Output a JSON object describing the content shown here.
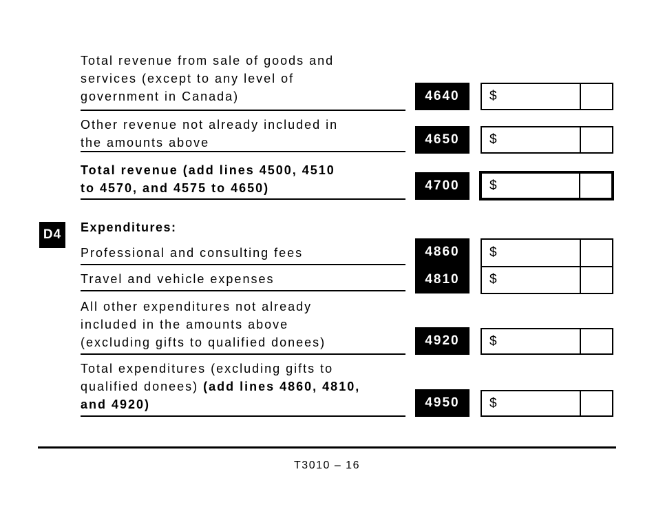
{
  "colors": {
    "ink": "#000000",
    "paper": "#ffffff"
  },
  "currency_symbol": "$",
  "section": {
    "id": "D4",
    "title": "Expenditures:"
  },
  "rows": [
    {
      "code": "4640",
      "label": "Total revenue from sale of goods and\nservices (except to any level of\ngovernment in Canada)",
      "label_bold": "",
      "value": "",
      "cents": ""
    },
    {
      "code": "4650",
      "label": "Other revenue not already included in\nthe amounts above",
      "label_bold": "",
      "value": "",
      "cents": ""
    },
    {
      "code": "4700",
      "label": "",
      "label_bold": "Total revenue (add lines 4500, 4510\nto 4570, and 4575 to 4650)",
      "value": "",
      "cents": ""
    },
    {
      "code": "4860",
      "label": "Professional and consulting fees",
      "label_bold": "",
      "value": "",
      "cents": ""
    },
    {
      "code": "4810",
      "label": "Travel and vehicle expenses",
      "label_bold": "",
      "value": "",
      "cents": ""
    },
    {
      "code": "4920",
      "label": "All other expenditures not already\nincluded in the amounts above\n(excluding gifts to qualified donees)",
      "label_bold": "",
      "value": "",
      "cents": ""
    },
    {
      "code": "4950",
      "label": "Total expenditures (excluding gifts to\nqualified donees) ",
      "label_bold": "(add lines 4860, 4810,\nand 4920)",
      "value": "",
      "cents": ""
    }
  ],
  "footer": {
    "page_code": "T3010 – 16"
  }
}
